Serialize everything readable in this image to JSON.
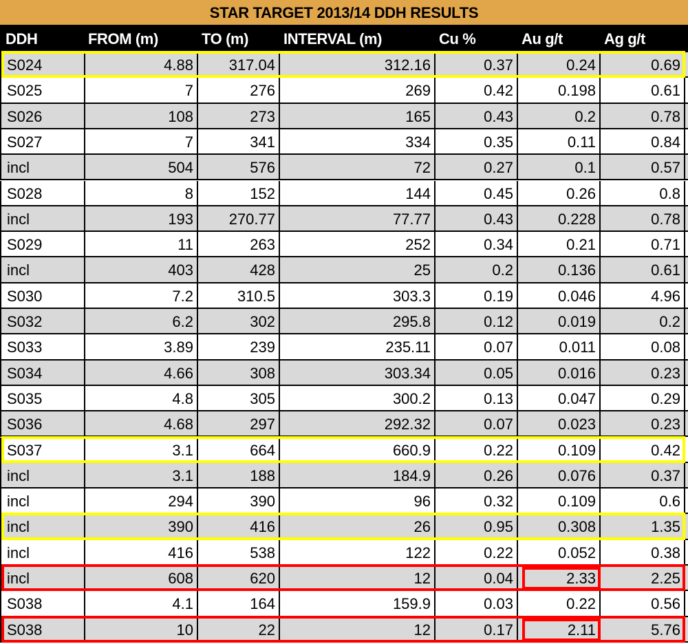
{
  "table": {
    "title": "STAR TARGET 2013/14 DDH RESULTS",
    "headers": [
      "DDH",
      "FROM (m)",
      "TO (m)",
      "INTERVAL (m)",
      "Cu %",
      "Au g/t",
      "Ag g/t"
    ],
    "rows": [
      [
        "S024",
        "4.88",
        "317.04",
        "312.16",
        "0.37",
        "0.24",
        "0.69"
      ],
      [
        "S025",
        "7",
        "276",
        "269",
        "0.42",
        "0.198",
        "0.61"
      ],
      [
        "S026",
        "108",
        "273",
        "165",
        "0.43",
        "0.2",
        "0.78"
      ],
      [
        "S027",
        "7",
        "341",
        "334",
        "0.35",
        "0.11",
        "0.84"
      ],
      [
        "incl",
        "504",
        "576",
        "72",
        "0.27",
        "0.1",
        "0.57"
      ],
      [
        "S028",
        "8",
        "152",
        "144",
        "0.45",
        "0.26",
        "0.8"
      ],
      [
        "incl",
        "193",
        "270.77",
        "77.77",
        "0.43",
        "0.228",
        "0.78"
      ],
      [
        "S029",
        "11",
        "263",
        "252",
        "0.34",
        "0.21",
        "0.71"
      ],
      [
        "incl",
        "403",
        "428",
        "25",
        "0.2",
        "0.136",
        "0.61"
      ],
      [
        "S030",
        "7.2",
        "310.5",
        "303.3",
        "0.19",
        "0.046",
        "4.96"
      ],
      [
        "S032",
        "6.2",
        "302",
        "295.8",
        "0.12",
        "0.019",
        "0.2"
      ],
      [
        "S033",
        "3.89",
        "239",
        "235.11",
        "0.07",
        "0.011",
        "0.08"
      ],
      [
        "S034",
        "4.66",
        "308",
        "303.34",
        "0.05",
        "0.016",
        "0.23"
      ],
      [
        "S035",
        "4.8",
        "305",
        "300.2",
        "0.13",
        "0.047",
        "0.29"
      ],
      [
        "S036",
        "4.68",
        "297",
        "292.32",
        "0.07",
        "0.023",
        "0.23"
      ],
      [
        "S037",
        "3.1",
        "664",
        "660.9",
        "0.22",
        "0.109",
        "0.42"
      ],
      [
        "incl",
        "3.1",
        "188",
        "184.9",
        "0.26",
        "0.076",
        "0.37"
      ],
      [
        "incl",
        "294",
        "390",
        "96",
        "0.32",
        "0.109",
        "0.6"
      ],
      [
        "incl",
        "390",
        "416",
        "26",
        "0.95",
        "0.308",
        "1.35"
      ],
      [
        "incl",
        "416",
        "538",
        "122",
        "0.22",
        "0.052",
        "0.38"
      ],
      [
        "incl",
        "608",
        "620",
        "12",
        "0.04",
        "2.33",
        "2.25"
      ],
      [
        "S038",
        "4.1",
        "164",
        "159.9",
        "0.03",
        "0.22",
        "0.56"
      ],
      [
        "S038",
        "10",
        "22",
        "12",
        "0.17",
        "2.11",
        "5.76"
      ]
    ]
  },
  "highlights": {
    "yellow_rows": [
      0,
      15,
      18
    ],
    "red_rows": [
      20,
      22
    ],
    "red_cells": [
      [
        20,
        5
      ],
      [
        22,
        5
      ]
    ]
  },
  "colors": {
    "title_bg": "#e2a64a",
    "header_bg": "#000000",
    "shade_row": "#d9d9d9",
    "yellow_box": "#ffff00",
    "red_box": "#ff0000"
  }
}
